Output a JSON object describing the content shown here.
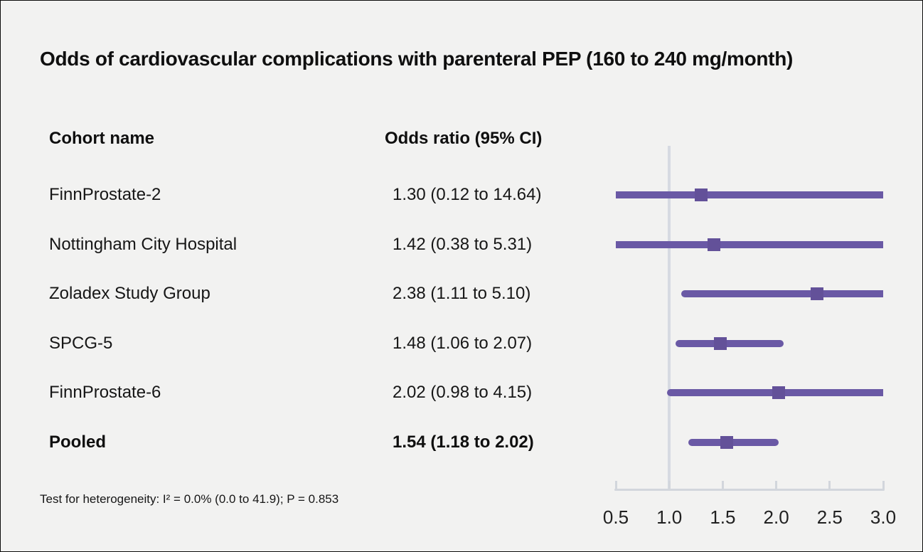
{
  "title": "Odds of cardiovascular complications with parenteral PEP (160 to 240 mg/month)",
  "columns": {
    "cohort": "Cohort name",
    "odds": "Odds ratio (95% CI)"
  },
  "footnote": "Test for heterogeneity: I² = 0.0% (0.0 to 41.9); P = 0.853",
  "colors": {
    "background": "#f2f2f1",
    "text": "#0f0f0f",
    "ci_line": "#6a59a5",
    "marker": "#635199",
    "ref_line": "#d6dae2",
    "axis": "#d2d6dc"
  },
  "chart_data": {
    "type": "forest",
    "title": "Odds of cardiovascular complications with parenteral PEP (160 to 240 mg/month)",
    "xlabel": "Odds ratio",
    "xlim": [
      0.5,
      3.0
    ],
    "tick_values": [
      0.5,
      1.0,
      1.5,
      2.0,
      2.5,
      3.0
    ],
    "tick_labels": [
      "0.5",
      "1.0",
      "1.5",
      "2.0",
      "2.5",
      "3.0"
    ],
    "ref_value": 1.0,
    "grid": false,
    "rows": [
      {
        "cohort": "FinnProstate-2",
        "label": "1.30 (0.12 to 14.64)",
        "or": 1.3,
        "lo": 0.12,
        "hi": 14.64,
        "bold": false
      },
      {
        "cohort": "Nottingham City Hospital",
        "label": "1.42 (0.38 to 5.31)",
        "or": 1.42,
        "lo": 0.38,
        "hi": 5.31,
        "bold": false
      },
      {
        "cohort": "Zoladex Study Group",
        "label": "2.38 (1.11 to 5.10)",
        "or": 2.38,
        "lo": 1.11,
        "hi": 5.1,
        "bold": false
      },
      {
        "cohort": "SPCG-5",
        "label": "1.48 (1.06 to 2.07)",
        "or": 1.48,
        "lo": 1.06,
        "hi": 2.07,
        "bold": false
      },
      {
        "cohort": "FinnProstate-6",
        "label": "2.02 (0.98 to 4.15)",
        "or": 2.02,
        "lo": 0.98,
        "hi": 4.15,
        "bold": false
      },
      {
        "cohort": "Pooled",
        "label": "1.54 (1.18 to 2.02)",
        "or": 1.54,
        "lo": 1.18,
        "hi": 2.02,
        "bold": true
      }
    ]
  }
}
